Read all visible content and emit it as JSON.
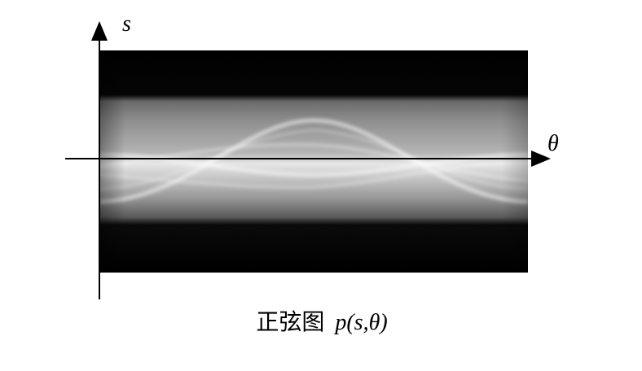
{
  "axes": {
    "vertical_label": "s",
    "horizontal_label": "θ"
  },
  "caption": {
    "title": "正弦图",
    "formula": "p(s,θ)"
  }
}
